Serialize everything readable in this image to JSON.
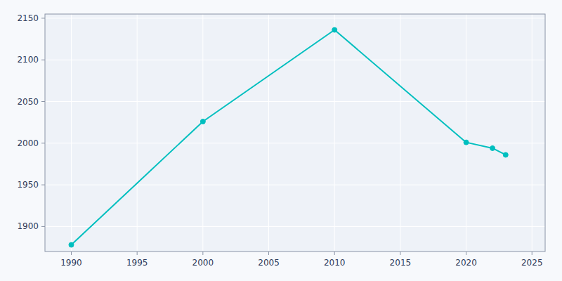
{
  "chart_data": {
    "type": "line",
    "x": [
      1990,
      2000,
      2010,
      2020,
      2022,
      2023
    ],
    "values": [
      1878,
      2026,
      2136,
      2001,
      1994,
      1986
    ],
    "color": "#00BFBF",
    "marker": "circle",
    "xlim": [
      1988,
      2026
    ],
    "ylim": [
      1870,
      2155
    ],
    "xticks": [
      1990,
      1995,
      2000,
      2005,
      2010,
      2015,
      2020,
      2025
    ],
    "yticks": [
      1900,
      1950,
      2000,
      2050,
      2100,
      2150
    ],
    "grid": true
  }
}
